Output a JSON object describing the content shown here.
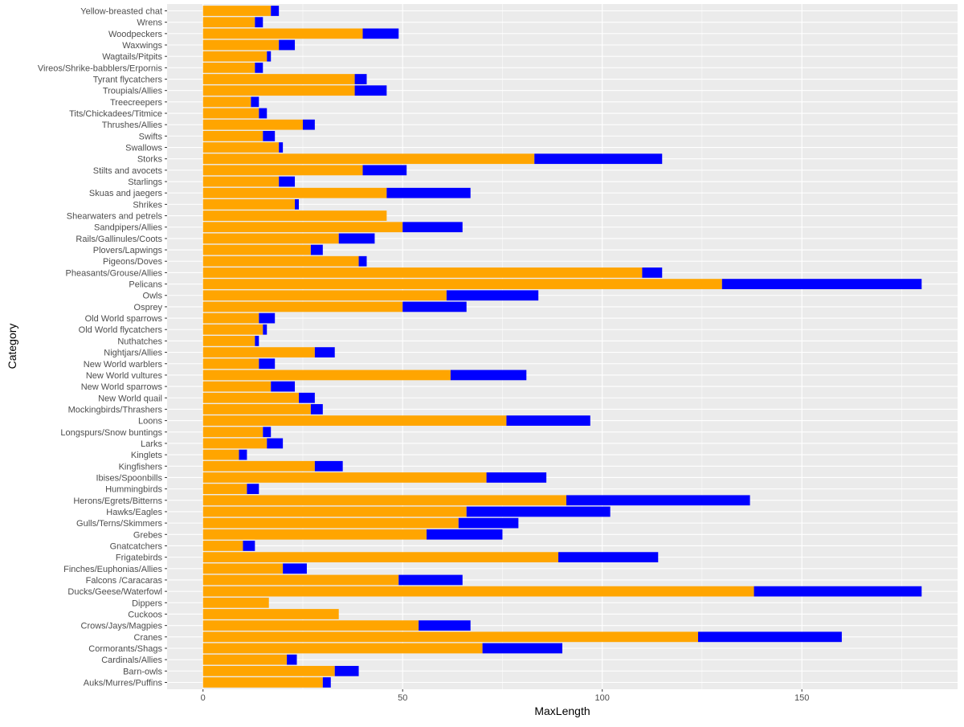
{
  "chart_data": {
    "type": "bar",
    "orientation": "horizontal",
    "stacked": true,
    "xlabel": "MaxLength",
    "ylabel": "Category",
    "xlim": [
      -9,
      189
    ],
    "xticks": [
      0,
      50,
      100,
      150
    ],
    "grid": true,
    "legend": "none",
    "colors": [
      "#FFA500",
      "#0000FF"
    ],
    "background": "#EBEBEB",
    "categories": [
      "Yellow-breasted chat",
      "Wrens",
      "Woodpeckers",
      "Waxwings",
      "Wagtails/Pitpits",
      "Vireos/Shrike-babblers/Erpornis",
      "Tyrant flycatchers",
      "Troupials/Allies",
      "Treecreepers",
      "Tits/Chickadees/Titmice",
      "Thrushes/Allies",
      "Swifts",
      "Swallows",
      "Storks",
      "Stilts and avocets",
      "Starlings",
      "Skuas and jaegers",
      "Shrikes",
      "Shearwaters and petrels",
      "Sandpipers/Allies",
      "Rails/Gallinules/Coots",
      "Plovers/Lapwings",
      "Pigeons/Doves",
      "Pheasants/Grouse/Allies",
      "Pelicans",
      "Owls",
      "Osprey",
      "Old World sparrows",
      "Old World flycatchers",
      "Nuthatches",
      "Nightjars/Allies",
      "New World warblers",
      "New World vultures",
      "New World sparrows",
      "New World quail",
      "Mockingbirds/Thrashers",
      "Loons",
      "Longspurs/Snow buntings",
      "Larks",
      "Kinglets",
      "Kingfishers",
      "Ibises/Spoonbills",
      "Hummingbirds",
      "Herons/Egrets/Bitterns",
      "Hawks/Eagles",
      "Gulls/Terns/Skimmers",
      "Grebes",
      "Gnatcatchers",
      "Frigatebirds",
      "Finches/Euphonias/Allies",
      "Falcons /Caracaras",
      "Ducks/Geese/Waterfowl",
      "Dippers",
      "Cuckoos",
      "Crows/Jays/Magpies",
      "Cranes",
      "Cormorants/Shags",
      "Cardinals/Allies",
      "Barn-owls",
      "Auks/Murres/Puffins"
    ],
    "series": [
      {
        "color": "#FFA500",
        "values": [
          17,
          13,
          40,
          19,
          16,
          13,
          38,
          38,
          12,
          14,
          25,
          15,
          19,
          83,
          40,
          19,
          46,
          23,
          46,
          50,
          34,
          27,
          39,
          110,
          130,
          61,
          50,
          14,
          15,
          13,
          28,
          14,
          62,
          17,
          24,
          27,
          76,
          15,
          16,
          9,
          28,
          71,
          11,
          91,
          66,
          64,
          56,
          10,
          89,
          20,
          49,
          138,
          16.5,
          34,
          54,
          124,
          70,
          21,
          33,
          30
        ]
      },
      {
        "color": "#0000FF",
        "values": [
          2,
          2,
          9,
          4,
          1,
          2,
          3,
          8,
          2,
          2,
          3,
          3,
          1,
          32,
          11,
          4,
          21,
          1,
          0,
          15,
          9,
          3,
          2,
          5,
          50,
          23,
          16,
          4,
          1,
          1,
          5,
          4,
          19,
          6,
          4,
          3,
          21,
          2,
          4,
          2,
          7,
          15,
          3,
          46,
          36,
          15,
          19,
          3,
          25,
          6,
          16,
          42,
          0,
          0,
          13,
          36,
          20,
          2.5,
          6,
          2
        ]
      }
    ]
  }
}
